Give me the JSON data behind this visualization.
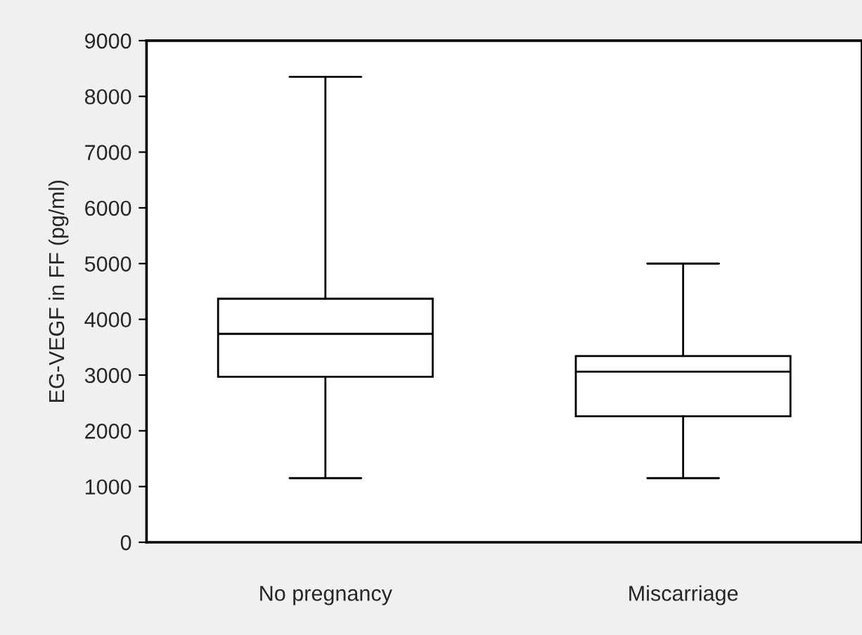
{
  "chart_data": {
    "type": "box",
    "ylabel": "EG-VEGF in FF (pg/ml)",
    "categories": [
      "No pregnancy",
      "Miscarriage"
    ],
    "boxes": [
      {
        "low": 1150,
        "q1": 2970,
        "median": 3740,
        "q3": 4370,
        "high": 8350
      },
      {
        "low": 1150,
        "q1": 2260,
        "median": 3060,
        "q3": 3340,
        "high": 5000
      }
    ],
    "color": "#ffffff",
    "ylim": [
      0,
      9000
    ],
    "yticks": [
      0,
      1000,
      2000,
      3000,
      4000,
      5000,
      6000,
      7000,
      8000,
      9000
    ],
    "grid": false,
    "legend": false
  }
}
